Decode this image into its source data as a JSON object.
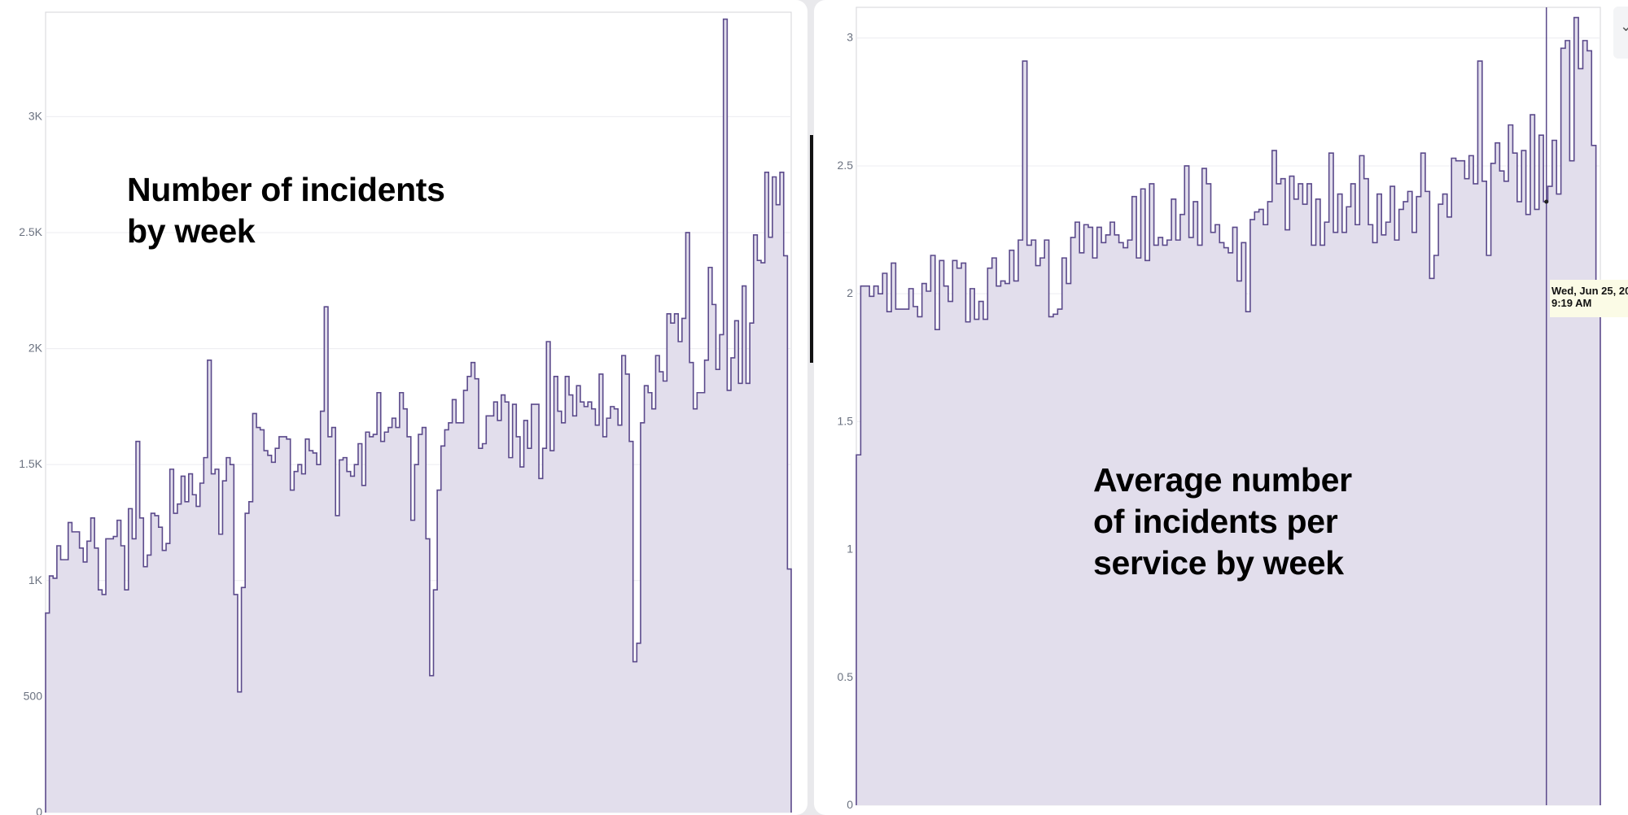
{
  "chart_data": [
    {
      "type": "area",
      "step": true,
      "title": "Number of incidents by week",
      "ylim": [
        0,
        3450
      ],
      "yticks": [
        0,
        500,
        1000,
        1500,
        2000,
        2500,
        3000
      ],
      "ytick_labels": [
        "0",
        "500",
        "1K",
        "1.5K",
        "2K",
        "2.5K",
        "3K"
      ],
      "grid": true,
      "color": "#5b4a8b",
      "fill": "#e2deec",
      "values": [
        860,
        1020,
        1010,
        1150,
        1090,
        1090,
        1250,
        1210,
        1210,
        1140,
        1080,
        1170,
        1270,
        1140,
        960,
        940,
        1180,
        1180,
        1190,
        1260,
        1150,
        960,
        1310,
        1180,
        1600,
        1270,
        1060,
        1110,
        1290,
        1280,
        1230,
        1130,
        1160,
        1480,
        1290,
        1330,
        1450,
        1340,
        1460,
        1370,
        1320,
        1420,
        1530,
        1950,
        1460,
        1480,
        1200,
        1430,
        1530,
        1500,
        940,
        520,
        970,
        1290,
        1340,
        1720,
        1660,
        1650,
        1560,
        1540,
        1510,
        1570,
        1620,
        1620,
        1610,
        1390,
        1470,
        1500,
        1460,
        1610,
        1560,
        1550,
        1500,
        1730,
        2180,
        1620,
        1660,
        1280,
        1520,
        1530,
        1470,
        1450,
        1500,
        1590,
        1410,
        1640,
        1620,
        1630,
        1810,
        1600,
        1640,
        1660,
        1700,
        1660,
        1810,
        1740,
        1620,
        1260,
        1500,
        1630,
        1660,
        1180,
        590,
        960,
        1390,
        1580,
        1650,
        1680,
        1780,
        1680,
        1680,
        1820,
        1880,
        1940,
        1870,
        1570,
        1590,
        1710,
        1710,
        1770,
        1690,
        1800,
        1770,
        1530,
        1760,
        1620,
        1490,
        1690,
        1570,
        1760,
        1760,
        1440,
        1570,
        2030,
        1560,
        1880,
        1730,
        1680,
        1880,
        1800,
        1710,
        1840,
        1770,
        1750,
        1770,
        1740,
        1670,
        1890,
        1620,
        1700,
        1750,
        1740,
        1670,
        1970,
        1890,
        1600,
        650,
        730,
        1680,
        1840,
        1810,
        1740,
        1970,
        1900,
        1860,
        2150,
        2110,
        2150,
        2030,
        2130,
        2500,
        1940,
        1740,
        1810,
        1810,
        1950,
        2350,
        2190,
        1910,
        2060,
        3420,
        1820,
        1960,
        2120,
        1850,
        2270,
        1850,
        2110,
        2490,
        2380,
        2370,
        2760,
        2480,
        2740,
        2620,
        2760,
        2400,
        1050
      ]
    },
    {
      "type": "area",
      "step": true,
      "title": "Average number of incidents per service by week",
      "ylim": [
        0,
        3.12
      ],
      "yticks": [
        0,
        0.5,
        1,
        1.5,
        2,
        2.5,
        3
      ],
      "ytick_labels": [
        "0",
        "0.5",
        "1",
        "1.5",
        "2",
        "2.5",
        "3"
      ],
      "grid": true,
      "color": "#5b4a8b",
      "fill": "#e2deec",
      "values": [
        1.37,
        2.03,
        2.03,
        1.99,
        2.03,
        2.0,
        2.08,
        1.93,
        2.12,
        1.94,
        1.94,
        1.94,
        2.02,
        1.95,
        1.91,
        2.04,
        2.01,
        2.15,
        1.86,
        2.13,
        2.03,
        1.97,
        2.13,
        2.1,
        2.12,
        1.89,
        2.02,
        1.9,
        1.97,
        1.9,
        2.1,
        2.14,
        2.03,
        2.05,
        2.04,
        2.17,
        2.05,
        2.21,
        2.91,
        2.19,
        2.21,
        2.11,
        2.14,
        2.21,
        1.91,
        1.92,
        1.94,
        2.14,
        2.04,
        2.22,
        2.28,
        2.16,
        2.27,
        2.26,
        2.14,
        2.26,
        2.2,
        2.23,
        2.28,
        2.23,
        2.2,
        2.18,
        2.21,
        2.38,
        2.14,
        2.41,
        2.13,
        2.43,
        2.19,
        2.22,
        2.19,
        2.21,
        2.37,
        2.21,
        2.31,
        2.5,
        2.22,
        2.36,
        2.19,
        2.49,
        2.43,
        2.24,
        2.27,
        2.2,
        2.18,
        2.16,
        2.26,
        2.05,
        2.2,
        1.93,
        2.29,
        2.32,
        2.33,
        2.27,
        2.36,
        2.56,
        2.43,
        2.45,
        2.25,
        2.46,
        2.37,
        2.43,
        2.35,
        2.43,
        2.19,
        2.37,
        2.19,
        2.28,
        2.55,
        2.24,
        2.39,
        2.24,
        2.34,
        2.43,
        2.27,
        2.54,
        2.45,
        2.27,
        2.2,
        2.39,
        2.23,
        2.28,
        2.42,
        2.21,
        2.33,
        2.36,
        2.4,
        2.24,
        2.38,
        2.55,
        2.4,
        2.06,
        2.15,
        2.35,
        2.39,
        2.3,
        2.53,
        2.52,
        2.52,
        2.45,
        2.54,
        2.43,
        2.91,
        2.44,
        2.15,
        2.51,
        2.59,
        2.48,
        2.44,
        2.66,
        2.55,
        2.36,
        2.56,
        2.31,
        2.7,
        2.33,
        2.62,
        2.36,
        2.42,
        2.6,
        2.39,
        2.96,
        2.99,
        2.52,
        3.08,
        2.88,
        2.99,
        2.95,
        2.58,
        1.93
      ],
      "hover": {
        "tooltip_line1": "Wed, Jun 25, 20",
        "tooltip_line2": "9:19 AM"
      }
    }
  ],
  "overlays": {
    "left_title_lines": [
      "Number of incidents",
      "by week"
    ],
    "right_title_lines": [
      "Average number",
      "of incidents per",
      "service by week"
    ]
  },
  "corner_button": {
    "icon": "chevron-down-icon",
    "glyph": "⌄"
  }
}
